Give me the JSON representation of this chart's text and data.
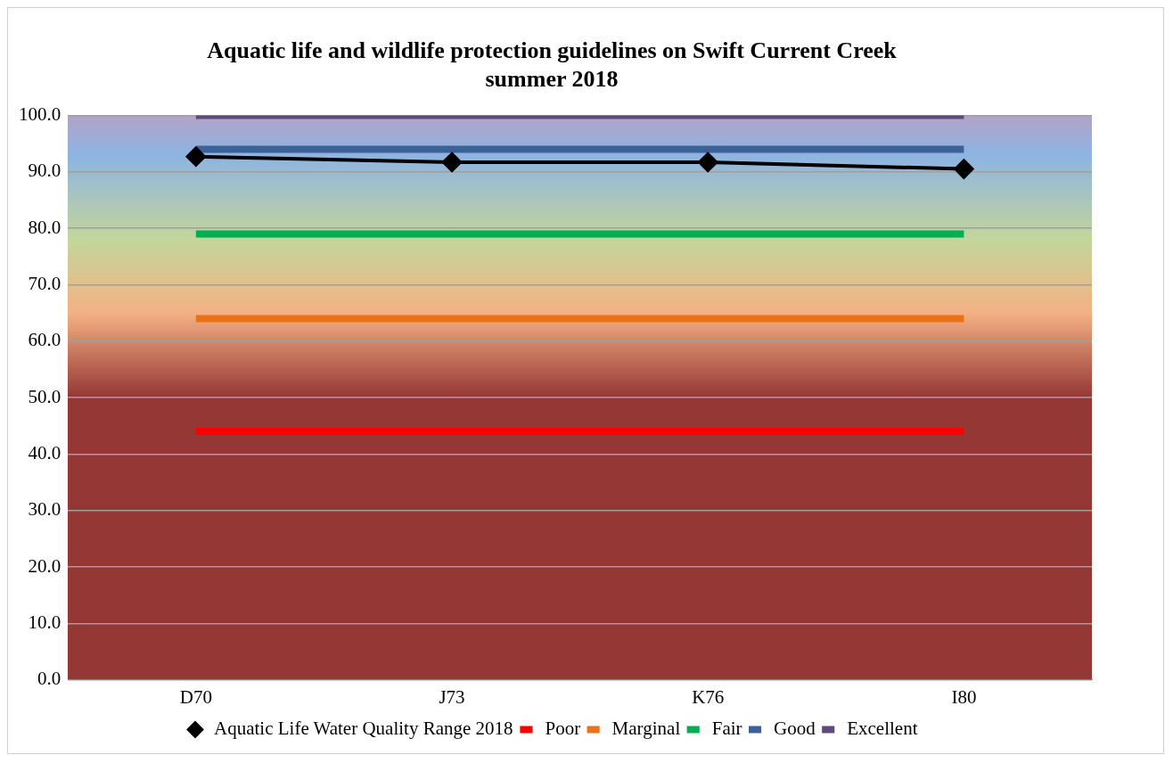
{
  "chart_data": {
    "type": "line",
    "title": [
      "Aquatic life and wildlife protection guidelines on Swift Current Creek",
      "summer 2018"
    ],
    "categories": [
      "D70",
      "J73",
      "K76",
      "I80"
    ],
    "series": [
      {
        "name": "Aquatic Life Water Quality Range 2018",
        "color": "#000000",
        "values": [
          92.7,
          91.7,
          91.7,
          90.5
        ],
        "marker": "diamond"
      },
      {
        "name": "Poor",
        "color": "#ff0000",
        "values": [
          44,
          44,
          44,
          44
        ],
        "marker": "none"
      },
      {
        "name": "Marginal",
        "color": "#e97116",
        "values": [
          64,
          64,
          64,
          64
        ],
        "marker": "none"
      },
      {
        "name": "Fair",
        "color": "#00b050",
        "values": [
          79,
          79,
          79,
          79
        ],
        "marker": "none"
      },
      {
        "name": "Good",
        "color": "#3a6198",
        "values": [
          94,
          94,
          94,
          94
        ],
        "marker": "none"
      },
      {
        "name": "Excellent",
        "color": "#604a7b",
        "values": [
          100,
          100,
          100,
          100
        ],
        "marker": "none"
      }
    ],
    "ylim": [
      0,
      100
    ],
    "yticks": [
      {
        "value": 0,
        "label": "0.0"
      },
      {
        "value": 10,
        "label": "10.0"
      },
      {
        "value": 20,
        "label": "20.0"
      },
      {
        "value": 30,
        "label": "30.0"
      },
      {
        "value": 40,
        "label": "40.0"
      },
      {
        "value": 50,
        "label": "50.0"
      },
      {
        "value": 60,
        "label": "60.0"
      },
      {
        "value": 70,
        "label": "70.0"
      },
      {
        "value": 80,
        "label": "80.0"
      },
      {
        "value": 90,
        "label": "90.0"
      },
      {
        "value": 100,
        "label": "100.0"
      }
    ],
    "grid": "y",
    "legend": "bottom",
    "line_style": "solid"
  }
}
